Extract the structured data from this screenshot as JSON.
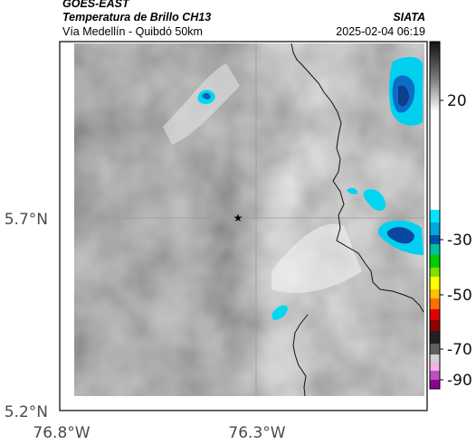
{
  "header": {
    "source": "GOES-EAST",
    "product": "Temperatura de Brillo CH13",
    "organization": "SIATA",
    "location": "Vía Medellín - Quibdó 50km",
    "datetime": "2025-02-04 06:19"
  },
  "axes": {
    "x_ticks": [
      "76.8°W",
      "76.3°W"
    ],
    "y_ticks": [
      "5.7°N",
      "5.2°N"
    ]
  },
  "colorbar": {
    "ticks": [
      "20",
      "-30",
      "-50",
      "-70",
      "-90"
    ],
    "colors": [
      "#101010",
      "#ffffff",
      "#00e5ff",
      "#0060c0",
      "#00d000",
      "#ffff00",
      "#ff8000",
      "#d00000",
      "#000000",
      "#f0a0e0",
      "#a000a0"
    ]
  },
  "map": {
    "marker_icon": "star-icon"
  }
}
